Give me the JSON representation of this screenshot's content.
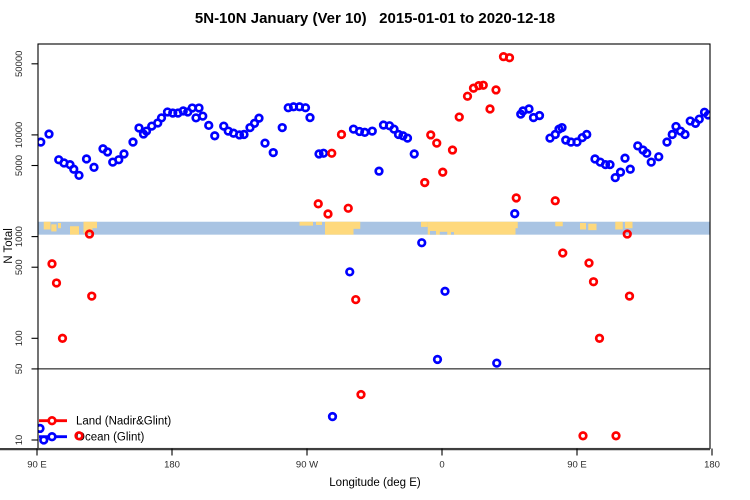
{
  "chart_data": {
    "type": "scatter",
    "title": "5N-10N January (Ver 10)   2015-01-01 to 2020-12-18",
    "xlabel": "Longitude (deg E)",
    "ylabel": "N Total",
    "x_axis": {
      "unit": "degrees shifted east from 90E",
      "range": [
        90,
        540
      ],
      "ticks": [
        {
          "lon": 90,
          "label": "90 E"
        },
        {
          "lon": 180,
          "label": "180"
        },
        {
          "lon": 270,
          "label": "90 W"
        },
        {
          "lon": 360,
          "label": "0"
        },
        {
          "lon": 450,
          "label": "90 E"
        },
        {
          "lon": 540,
          "label": "180"
        }
      ]
    },
    "y_axis": {
      "scale": "log10",
      "range": [
        8,
        78000
      ],
      "ticks": [
        10,
        50,
        100,
        500,
        1000,
        5000,
        10000,
        50000
      ],
      "tick_labels": [
        "10",
        "50",
        "100",
        "500",
        "1000",
        "5000",
        "10000",
        "50000"
      ]
    },
    "reference_line": {
      "value": 50,
      "color": "#000000"
    },
    "map_strip": {
      "description": "horizontal world-map band showing ocean/land between 5N and 10N",
      "value_top": 1400,
      "value_bottom": 1045,
      "ocean_color": "#a9c4e3",
      "land_color": "#fed97d",
      "land_segments": [
        [
          94.5,
          99,
          0,
          0.6
        ],
        [
          99.5,
          103,
          0.2,
          0.75
        ],
        [
          104,
          106,
          0.1,
          0.5
        ],
        [
          112,
          118,
          0.35,
          1.0
        ],
        [
          121,
          127,
          0,
          0.9
        ],
        [
          127,
          130,
          0,
          0.5
        ],
        [
          265,
          274,
          0,
          0.3
        ],
        [
          276,
          280,
          0,
          0.25
        ],
        [
          282,
          301,
          0,
          1.0
        ],
        [
          301,
          305.5,
          0,
          0.55
        ],
        [
          346,
          350.5,
          0,
          0.4
        ],
        [
          350.5,
          409,
          0,
          1.0
        ],
        [
          409,
          410.5,
          0,
          0.5
        ],
        [
          435.5,
          440.5,
          0,
          0.35
        ],
        [
          452,
          456,
          0.1,
          0.6
        ],
        [
          457.5,
          463,
          0.15,
          0.65
        ],
        [
          475.5,
          480.5,
          0,
          0.6
        ],
        [
          482,
          487,
          0,
          0.5
        ]
      ],
      "water_notches": [
        [
          352,
          356,
          0.72,
          1.0
        ],
        [
          358.5,
          363.5,
          0.78,
          1.0
        ],
        [
          366,
          368,
          0.8,
          1.0
        ]
      ]
    },
    "legend": {
      "position": "bottom-left",
      "entries": [
        {
          "label": "Land (Nadir&Glint)",
          "color": "#ff0000"
        },
        {
          "label": "Ocean (Glint)",
          "color": "#0000ff"
        }
      ]
    },
    "series": [
      {
        "name": "Land (Nadir&Glint)",
        "color": "#ff0000",
        "points": [
          [
            100,
            540
          ],
          [
            103,
            350
          ],
          [
            107,
            100
          ],
          [
            118,
            11
          ],
          [
            125,
            1060
          ],
          [
            126.5,
            260
          ],
          [
            277.5,
            2100
          ],
          [
            284,
            1670
          ],
          [
            286.5,
            6600
          ],
          [
            293,
            10100
          ],
          [
            297.5,
            1900
          ],
          [
            302.5,
            240
          ],
          [
            306,
            28
          ],
          [
            348.5,
            3400
          ],
          [
            352.5,
            10000
          ],
          [
            356.5,
            8300
          ],
          [
            360.5,
            4300
          ],
          [
            367,
            7100
          ],
          [
            371.5,
            15000
          ],
          [
            377,
            24000
          ],
          [
            381,
            28800
          ],
          [
            384.5,
            30500
          ],
          [
            387.5,
            30800
          ],
          [
            392,
            18000
          ],
          [
            396,
            27700
          ],
          [
            401,
            58800
          ],
          [
            405,
            57400
          ],
          [
            409.5,
            2400
          ],
          [
            435.5,
            2250
          ],
          [
            440.5,
            690
          ],
          [
            454,
            11
          ],
          [
            458,
            550
          ],
          [
            461,
            360
          ],
          [
            465,
            100
          ],
          [
            476,
            11
          ],
          [
            483.5,
            1060
          ],
          [
            485,
            260
          ]
        ]
      },
      {
        "name": "Ocean (Glint)",
        "color": "#0000ff",
        "points": [
          [
            92.5,
            8500
          ],
          [
            98,
            10200
          ],
          [
            104.5,
            5700
          ],
          [
            108,
            5300
          ],
          [
            112,
            5100
          ],
          [
            114.5,
            4600
          ],
          [
            118,
            4000
          ],
          [
            123,
            5800
          ],
          [
            128,
            4800
          ],
          [
            134,
            7300
          ],
          [
            137,
            6800
          ],
          [
            140.5,
            5400
          ],
          [
            144.5,
            5700
          ],
          [
            148,
            6500
          ],
          [
            154,
            8500
          ],
          [
            158,
            11700
          ],
          [
            161,
            10200
          ],
          [
            163,
            10900
          ],
          [
            166.5,
            12200
          ],
          [
            170.5,
            13100
          ],
          [
            173,
            14700
          ],
          [
            177,
            16800
          ],
          [
            180.5,
            16400
          ],
          [
            184,
            16400
          ],
          [
            187.5,
            17200
          ],
          [
            190.5,
            16800
          ],
          [
            193.5,
            18400
          ],
          [
            196,
            14700
          ],
          [
            198,
            18400
          ],
          [
            200.5,
            15300
          ],
          [
            204.5,
            12400
          ],
          [
            208.5,
            9800
          ],
          [
            214.5,
            12200
          ],
          [
            217.5,
            10900
          ],
          [
            221,
            10400
          ],
          [
            225,
            10000
          ],
          [
            228,
            10100
          ],
          [
            232,
            11800
          ],
          [
            235,
            13000
          ],
          [
            238,
            14600
          ],
          [
            242,
            8300
          ],
          [
            247.5,
            6700
          ],
          [
            253.5,
            11800
          ],
          [
            257.5,
            18500
          ],
          [
            261,
            18900
          ],
          [
            265,
            18900
          ],
          [
            269,
            18500
          ],
          [
            272,
            14800
          ],
          [
            278,
            6500
          ],
          [
            281,
            6600
          ],
          [
            301,
            11400
          ],
          [
            305,
            10800
          ],
          [
            308.5,
            10600
          ],
          [
            313.5,
            10900
          ],
          [
            318,
            4400
          ],
          [
            321,
            12500
          ],
          [
            325,
            12300
          ],
          [
            328,
            11400
          ],
          [
            331,
            10100
          ],
          [
            334,
            9800
          ],
          [
            337,
            9300
          ],
          [
            341.5,
            6500
          ],
          [
            412.5,
            16000
          ],
          [
            414,
            17200
          ],
          [
            418,
            18000
          ],
          [
            421,
            14800
          ],
          [
            425,
            15500
          ],
          [
            432,
            9300
          ],
          [
            435.5,
            10100
          ],
          [
            438,
            11400
          ],
          [
            440,
            11800
          ],
          [
            442.5,
            8900
          ],
          [
            446,
            8500
          ],
          [
            450,
            8500
          ],
          [
            453.5,
            9400
          ],
          [
            456.5,
            10100
          ],
          [
            462,
            5800
          ],
          [
            465.5,
            5400
          ],
          [
            469,
            5100
          ],
          [
            472,
            5100
          ],
          [
            475.5,
            3800
          ],
          [
            479,
            4300
          ],
          [
            482,
            5900
          ],
          [
            485.5,
            4600
          ],
          [
            490.5,
            7800
          ],
          [
            494,
            7100
          ],
          [
            496.5,
            6600
          ],
          [
            499.5,
            5400
          ],
          [
            504.5,
            6100
          ],
          [
            510,
            8500
          ],
          [
            513.5,
            10100
          ],
          [
            516,
            12100
          ],
          [
            519,
            10900
          ],
          [
            522,
            10100
          ],
          [
            525.5,
            13700
          ],
          [
            529,
            13000
          ],
          [
            531.5,
            14300
          ],
          [
            535,
            16700
          ],
          [
            537.5,
            15700
          ],
          [
            92,
            13
          ],
          [
            94.5,
            10
          ],
          [
            287,
            17
          ],
          [
            298.5,
            450
          ],
          [
            346.5,
            870
          ],
          [
            357,
            62
          ],
          [
            362,
            290
          ],
          [
            396.5,
            57
          ],
          [
            408.5,
            1680
          ]
        ]
      }
    ]
  }
}
